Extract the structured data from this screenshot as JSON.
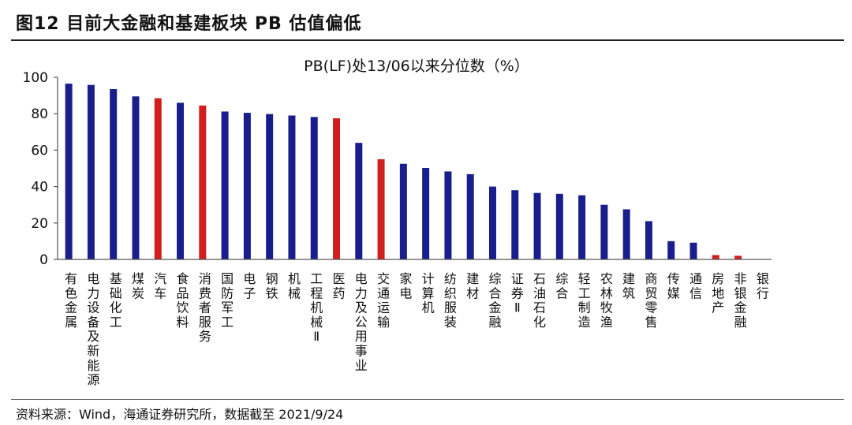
{
  "figure": {
    "title": "图12 目前大金融和基建板块 PB 估值偏低",
    "source": "资料来源：Wind，海通证券研究所，数据截至 2021/9/24"
  },
  "colors": {
    "default_bar": "#1a1e8c",
    "highlight_bar": "#d11f1f",
    "axis": "#555555"
  },
  "chart_data": {
    "type": "bar",
    "title": "PB(LF)处13/06以来分位数（%）",
    "xlabel": "",
    "ylabel": "",
    "ylim": [
      0,
      100
    ],
    "yticks": [
      0,
      20,
      40,
      60,
      80,
      100
    ],
    "grid": false,
    "legend": "none",
    "categories": [
      "有色金属",
      "电力设备及新能源",
      "基础化工",
      "煤炭",
      "汽车",
      "食品饮料",
      "消费者服务",
      "国防军工",
      "电子",
      "钢铁",
      "机械",
      "工程机械Ⅱ",
      "医药",
      "电力及公用事业",
      "交通运输",
      "家电",
      "计算机",
      "纺织服装",
      "建材",
      "综合金融",
      "证券Ⅱ",
      "石油石化",
      "综合",
      "轻工制造",
      "农林牧渔",
      "建筑",
      "商贸零售",
      "传媒",
      "通信",
      "房地产",
      "非银金融",
      "银行"
    ],
    "values": [
      96.5,
      95.8,
      93.5,
      89.5,
      88.5,
      86,
      84.5,
      81.2,
      80.5,
      79.8,
      79,
      78.2,
      77.5,
      64,
      55,
      52.5,
      50.2,
      48.3,
      46.8,
      40,
      38,
      36.5,
      36,
      35.2,
      30,
      27.5,
      21,
      10,
      9.2,
      2.4,
      2,
      0
    ],
    "highlight": [
      "汽车",
      "消费者服务",
      "医药",
      "交通运输",
      "房地产",
      "非银金融"
    ]
  }
}
